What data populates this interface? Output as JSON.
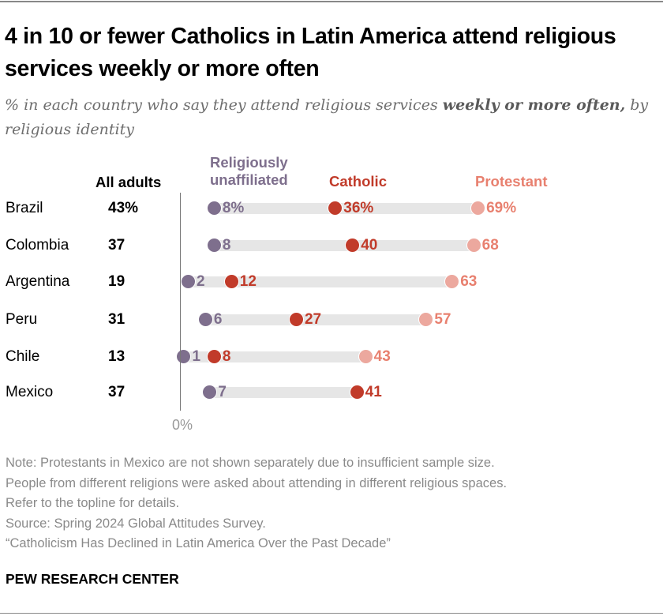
{
  "title": "4 in 10 or fewer Catholics in Latin America attend religious services weekly or more often",
  "subtitle": {
    "pre": "% in each country who say they attend religious services ",
    "bold": "weekly or more often,",
    "post": " by religious identity"
  },
  "colors": {
    "unaffiliated": "#7e6f8d",
    "catholic": "#c13b2a",
    "protestant_dot": "#eca89e",
    "protestant_text": "#e8806f",
    "bar": "#e6e6e6"
  },
  "chart_data": {
    "type": "dot",
    "title": "4 in 10 or fewer Catholics in Latin America attend religious services weekly or more often",
    "column_header": "All adults",
    "categories": [
      "Brazil",
      "Colombia",
      "Argentina",
      "Peru",
      "Chile",
      "Mexico"
    ],
    "all_adults": [
      "43%",
      "37",
      "19",
      "31",
      "13",
      "37"
    ],
    "series": [
      {
        "name": "Religiously unaffiliated",
        "key": "unaffiliated",
        "values": [
          8,
          8,
          2,
          6,
          1,
          7
        ]
      },
      {
        "name": "Catholic",
        "key": "catholic",
        "values": [
          36,
          40,
          12,
          27,
          8,
          41
        ]
      },
      {
        "name": "Protestant",
        "key": "protestant",
        "values": [
          69,
          68,
          63,
          57,
          43,
          null
        ]
      }
    ],
    "xlim": [
      0,
      100
    ],
    "x_tick_label": "0%"
  },
  "legend": {
    "unaffiliated_line1": "Religiously",
    "unaffiliated_line2": "unaffiliated",
    "catholic": "Catholic",
    "protestant": "Protestant"
  },
  "notes": [
    "Note: Protestants in Mexico are not shown separately due to insufficient sample size.",
    "People from different religions were asked about attending in different religious spaces.",
    "Refer to the topline for details.",
    "Source: Spring 2024 Global Attitudes Survey.",
    "“Catholicism Has Declined in Latin America Over the Past Decade”"
  ],
  "brand": "PEW RESEARCH CENTER"
}
